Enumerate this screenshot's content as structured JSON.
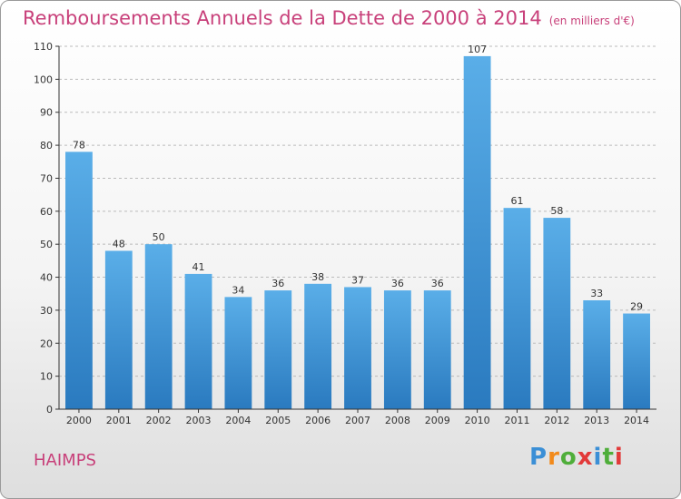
{
  "chart_data": {
    "type": "bar",
    "title": "Remboursements Annuels de la Dette de 2000 à 2014",
    "subtitle": "(en milliers d'€)",
    "categories": [
      "2000",
      "2001",
      "2002",
      "2003",
      "2004",
      "2005",
      "2006",
      "2007",
      "2008",
      "2009",
      "2010",
      "2011",
      "2012",
      "2013",
      "2014"
    ],
    "values": [
      78,
      48,
      50,
      41,
      34,
      36,
      38,
      37,
      36,
      36,
      107,
      61,
      58,
      33,
      29
    ],
    "xlabel": "",
    "ylabel": "",
    "ylim": [
      0,
      110
    ],
    "yticks": [
      0,
      10,
      20,
      30,
      40,
      50,
      60,
      70,
      80,
      90,
      100,
      110
    ],
    "grid": "horizontal dashed",
    "legend": "none",
    "bar_color_light": "#5aaee8",
    "bar_color_dark": "#2a7abf"
  },
  "commune": "HAIMPS",
  "logo": {
    "letters": [
      "P",
      "r",
      "o",
      "x",
      "i",
      "t",
      "i"
    ],
    "colors": [
      "#3b8fd6",
      "#f28a1b",
      "#4fae3a",
      "#e23a3a",
      "#3b8fd6",
      "#4fae3a",
      "#e23a3a"
    ]
  },
  "colors": {
    "title": "#c8407a",
    "axis": "#333333",
    "grid": "#bbbbbb"
  }
}
